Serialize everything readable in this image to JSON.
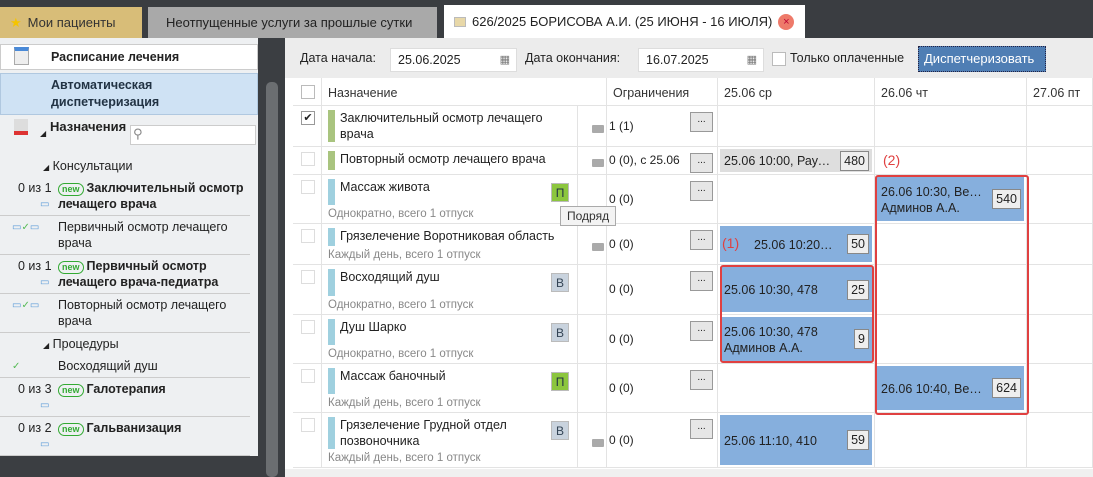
{
  "tabs": [
    {
      "label": "Мои пациенты",
      "icon": "star-icon"
    },
    {
      "label": "Неотпущенные услуги за прошлые сутки"
    },
    {
      "label": "626/2025 БОРИСОВА А.И. (25 ИЮНЯ - 16 ИЮЛЯ)",
      "icon": "document-icon",
      "close": "×"
    }
  ],
  "sidebar": {
    "schedule": "Расписание лечения",
    "auto": "Автоматическая диспетчеризация",
    "assignments": "Назначения",
    "search_placeholder": "",
    "groups": [
      {
        "label": "Консультации",
        "items": [
          {
            "count": "0 из 1",
            "new": "new",
            "label": "Заключительный осмотр лечащего врача",
            "bold": true,
            "icons": "💬▭"
          },
          {
            "count": "",
            "label": "Первичный осмотр лечащего врача",
            "bold": false,
            "icons": "💬✓▭"
          },
          {
            "count": "0 из 1",
            "new": "new",
            "label": "Первичный осмотр лечащего врача-педиатра",
            "bold": true,
            "icons": "💬"
          },
          {
            "count": "",
            "label": "Повторный осмотр лечащего врача",
            "bold": false,
            "icons": "💬✓▭"
          }
        ]
      },
      {
        "label": "Процедуры",
        "items": [
          {
            "count": "",
            "label": "Восходящий душ",
            "bold": false,
            "icons": "✓"
          },
          {
            "count": "0 из 3",
            "new": "new",
            "label": "Галотерапия",
            "bold": true,
            "icons": "💬"
          },
          {
            "count": "0 из 2",
            "new": "new",
            "label": "Гальванизация",
            "bold": true,
            "icons": "💬"
          }
        ]
      }
    ]
  },
  "toolbar": {
    "start_label": "Дата начала:",
    "start": "25.06.2025",
    "end_label": "Дата окончания:",
    "end": "16.07.2025",
    "paid_only": "Только оплаченные",
    "paid_checked": false,
    "dispatch": "Диспетчеризовать"
  },
  "grid": {
    "columns": [
      "Назначение",
      "Ограничения",
      "25.06 ср",
      "26.06 чт",
      "27.06 пт"
    ],
    "rows": [
      {
        "checked": true,
        "name": "Заключительный осмотр лечащего врача",
        "sub": "",
        "color": "#a9c47f",
        "tag": "",
        "pay": true,
        "limit": "1 (1)",
        "d1": null,
        "d2": null
      },
      {
        "checked": false,
        "name": "Повторный осмотр лечащего врача",
        "sub": "",
        "color": "#a9c47f",
        "tag": "",
        "pay": true,
        "limit": "0 (0), с 25.06",
        "d1": {
          "text": "25.06 10:00, Раудс...",
          "num": "480",
          "gray": true
        },
        "d2": null
      },
      {
        "checked": false,
        "name": "Массаж живота",
        "sub": "Однократно, всего 1 отпуск",
        "color": "#9fd0df",
        "tag": "П",
        "pay": false,
        "limit": "0 (0)",
        "d1": null,
        "d2": {
          "text": "26.06 10:30, Вергей\nАдминов А.А.",
          "num": "540"
        }
      },
      {
        "checked": false,
        "name": "Грязелечение Воротниковая область",
        "sub": "Каждый день, всего 1 отпуск",
        "color": "#9fd0df",
        "tag": "",
        "pay": true,
        "limit": "0 (0)",
        "d1": {
          "text": "25.06 10:20, 458 -...",
          "num": "50"
        },
        "d2": null
      },
      {
        "checked": false,
        "name": "Восходящий душ",
        "sub": "Однократно, всего 1 отпуск",
        "color": "#9fd0df",
        "tag": "В",
        "pay": false,
        "limit": "0 (0)",
        "d1": {
          "text": "25.06 10:30, 478",
          "num": "25"
        },
        "d2": null
      },
      {
        "checked": false,
        "name": "Душ Шарко",
        "sub": "Однократно, всего 1 отпуск",
        "color": "#9fd0df",
        "tag": "В",
        "pay": false,
        "limit": "0 (0)",
        "d1": {
          "text": "25.06 10:30, 478\nАдминов А.А.",
          "num": "9"
        },
        "d2": null
      },
      {
        "checked": false,
        "name": "Массаж баночный",
        "sub": "Каждый день, всего 1 отпуск",
        "color": "#9fd0df",
        "tag": "П",
        "pay": false,
        "limit": "0 (0)",
        "d1": null,
        "d2": {
          "text": "26.06 10:40, Вергей",
          "num": "624"
        }
      },
      {
        "checked": false,
        "name": "Грязелечение Грудной отдел позвоночника",
        "sub": "Каждый день, всего 1 отпуск",
        "color": "#9fd0df",
        "tag": "В",
        "pay": true,
        "limit": "0 (0)",
        "d1": {
          "text": "25.06 11:10, 410",
          "num": "59"
        },
        "d2": null
      }
    ],
    "more": "...",
    "tooltip": "Подряд",
    "annotations": [
      "(1)",
      "(2)"
    ]
  }
}
